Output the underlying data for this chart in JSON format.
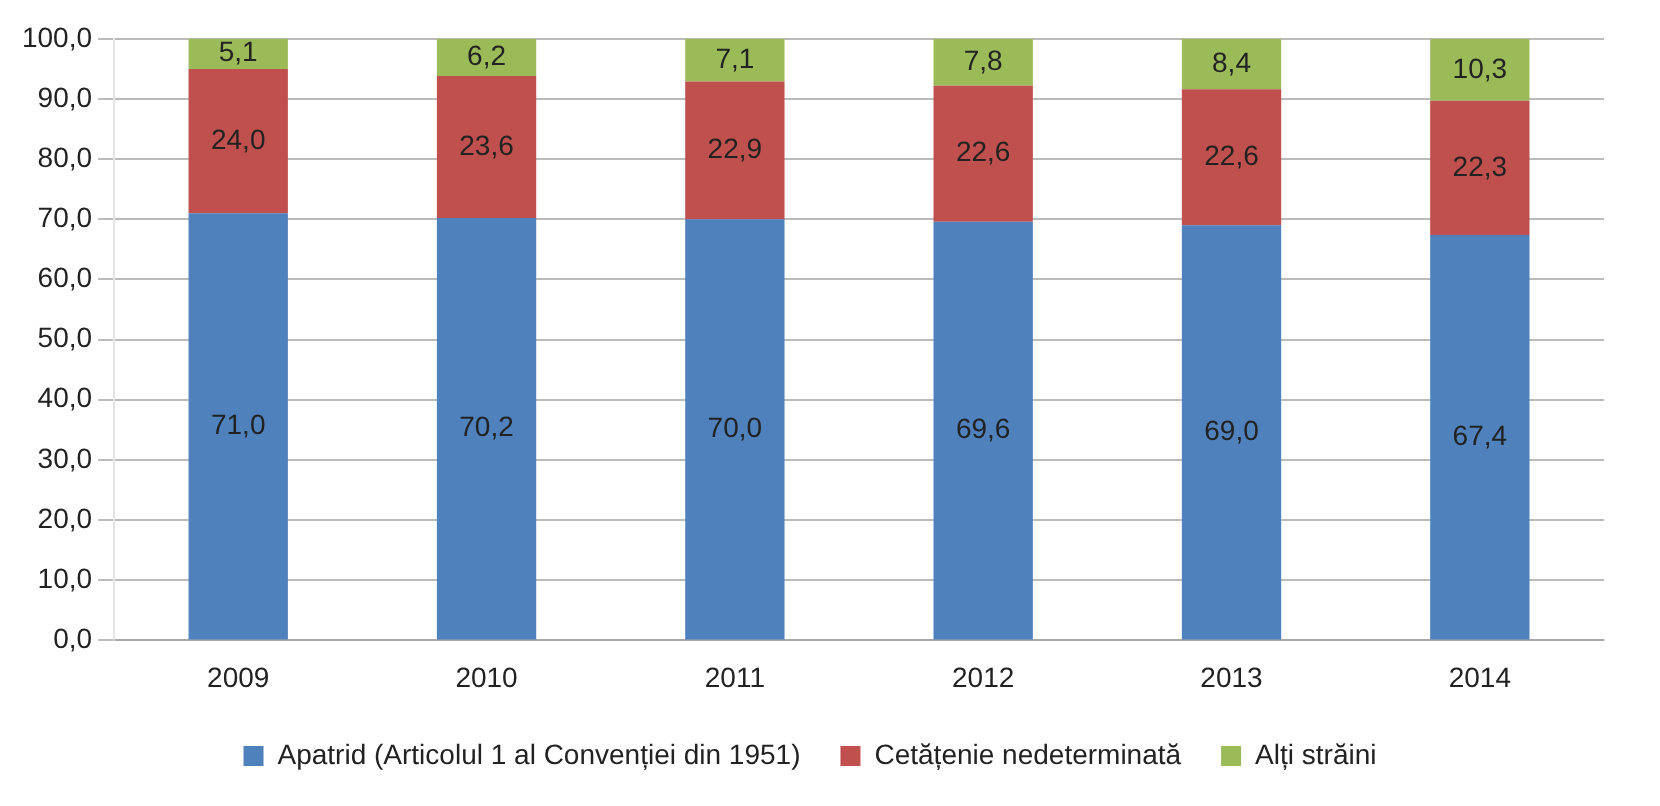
{
  "chart_data": {
    "type": "bar",
    "stacked": true,
    "categories": [
      "2009",
      "2010",
      "2011",
      "2012",
      "2013",
      "2014"
    ],
    "series": [
      {
        "name": "Apatrid (Articolul 1 al Convenției din 1951)",
        "color": "#4f81bd",
        "values": [
          71.0,
          70.2,
          70.0,
          69.6,
          69.0,
          67.4
        ],
        "value_labels": [
          "71,0",
          "70,2",
          "70,0",
          "69,6",
          "69,0",
          "67,4"
        ]
      },
      {
        "name": "Cetățenie nedeterminată",
        "color": "#c0504d",
        "values": [
          24.0,
          23.6,
          22.9,
          22.6,
          22.6,
          22.3
        ],
        "value_labels": [
          "24,0",
          "23,6",
          "22,9",
          "22,6",
          "22,6",
          "22,3"
        ]
      },
      {
        "name": "Alți străini",
        "color": "#9bbb59",
        "values": [
          5.1,
          6.2,
          7.1,
          7.8,
          8.4,
          10.3
        ],
        "value_labels": [
          "5,1",
          "6,2",
          "7,1",
          "7,8",
          "8,4",
          "10,3"
        ]
      }
    ],
    "ylim": [
      0,
      100
    ],
    "yticks": [
      {
        "value": 0,
        "label": "0,0"
      },
      {
        "value": 10,
        "label": "10,0"
      },
      {
        "value": 20,
        "label": "20,0"
      },
      {
        "value": 30,
        "label": "30,0"
      },
      {
        "value": 40,
        "label": "40,0"
      },
      {
        "value": 50,
        "label": "50,0"
      },
      {
        "value": 60,
        "label": "60,0"
      },
      {
        "value": 70,
        "label": "70,0"
      },
      {
        "value": 80,
        "label": "80,0"
      },
      {
        "value": 90,
        "label": "90,0"
      },
      {
        "value": 100,
        "label": "100,0"
      }
    ],
    "grid": "y",
    "legend": "bottom"
  }
}
